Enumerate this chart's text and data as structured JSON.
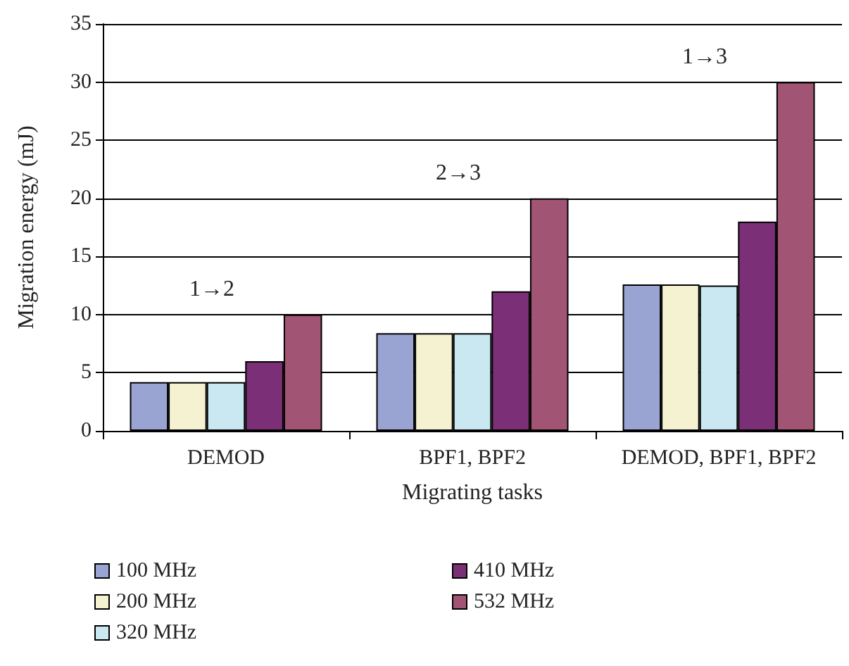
{
  "chart_data": {
    "type": "bar",
    "xlabel": "Migrating tasks",
    "ylabel": "Migration energy (mJ)",
    "categories": [
      "DEMOD",
      "BPF1, BPF2",
      "DEMOD, BPF1, BPF2"
    ],
    "series": [
      {
        "name": "100 MHz",
        "color": "#99a4d2",
        "values": [
          4.2,
          8.4,
          12.6
        ]
      },
      {
        "name": "200 MHz",
        "color": "#f5f2d2",
        "values": [
          4.2,
          8.4,
          12.6
        ]
      },
      {
        "name": "320 MHz",
        "color": "#c9e8f2",
        "values": [
          4.2,
          8.4,
          12.5
        ]
      },
      {
        "name": "410 MHz",
        "color": "#7b2f77",
        "values": [
          6,
          12,
          18
        ]
      },
      {
        "name": "532 MHz",
        "color": "#a25474",
        "values": [
          10,
          20,
          30
        ]
      }
    ],
    "annotations": [
      "1→2",
      "2→3",
      "1→3"
    ],
    "ylim": [
      0,
      35
    ],
    "yticks": [
      0,
      5,
      10,
      15,
      20,
      25,
      30,
      35
    ],
    "grid": "y",
    "legend": "bottom"
  }
}
